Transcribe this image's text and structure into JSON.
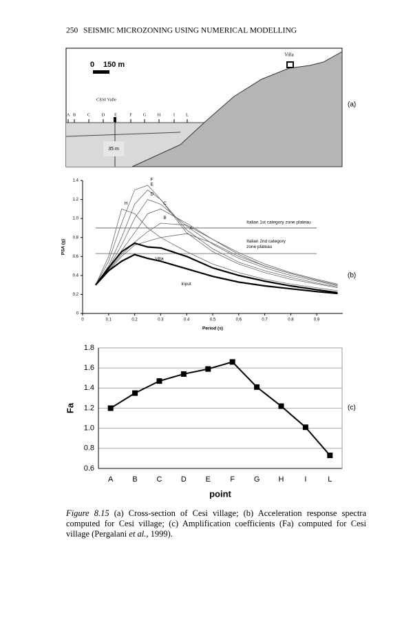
{
  "header": {
    "page_number": "250",
    "running_title": "SEISMIC MICROZONING USING NUMERICAL MODELLING"
  },
  "panel_a": {
    "label": "(a)",
    "scale_start": "0",
    "scale_end": "150 m",
    "villa": "Villa",
    "valley": "CESI Valle",
    "points": [
      "A",
      "B",
      "C",
      "D",
      "E",
      "F",
      "G",
      "H",
      "I",
      "L"
    ],
    "depth": "35 m"
  },
  "chart_data": [
    {
      "type": "line",
      "panel_label": "(b)",
      "x_label": "Period (s)",
      "y_label": "PSA (g)",
      "x": [
        0.05,
        0.1,
        0.15,
        0.2,
        0.25,
        0.3,
        0.4,
        0.5,
        0.6,
        0.7,
        0.8,
        0.9,
        0.98
      ],
      "series": [
        {
          "name": "H",
          "color": "#666666",
          "values": [
            0.3,
            0.6,
            1.1,
            1.05,
            0.9,
            0.8,
            0.65,
            0.52,
            0.43,
            0.36,
            0.31,
            0.27,
            0.24
          ]
        },
        {
          "name": "F",
          "color": "#666666",
          "values": [
            0.3,
            0.55,
            0.95,
            1.3,
            1.35,
            1.2,
            0.85,
            0.65,
            0.52,
            0.43,
            0.36,
            0.31,
            0.27
          ]
        },
        {
          "name": "E",
          "color": "#666666",
          "values": [
            0.3,
            0.5,
            0.8,
            1.15,
            1.3,
            1.2,
            0.88,
            0.68,
            0.54,
            0.45,
            0.38,
            0.32,
            0.28
          ]
        },
        {
          "name": "D",
          "color": "#666666",
          "values": [
            0.3,
            0.48,
            0.72,
            1.0,
            1.2,
            1.15,
            0.92,
            0.73,
            0.58,
            0.48,
            0.4,
            0.34,
            0.29
          ]
        },
        {
          "name": "C",
          "color": "#666666",
          "values": [
            0.3,
            0.47,
            0.66,
            0.85,
            1.05,
            1.1,
            0.95,
            0.78,
            0.62,
            0.5,
            0.42,
            0.35,
            0.3
          ]
        },
        {
          "name": "B",
          "color": "#666666",
          "values": [
            0.3,
            0.46,
            0.62,
            0.75,
            0.86,
            0.95,
            0.93,
            0.78,
            0.64,
            0.52,
            0.43,
            0.36,
            0.31
          ]
        },
        {
          "name": "A",
          "color": "#666666",
          "values": [
            0.3,
            0.45,
            0.6,
            0.72,
            0.76,
            0.8,
            0.84,
            0.74,
            0.6,
            0.5,
            0.42,
            0.35,
            0.3
          ]
        },
        {
          "name": "Villa",
          "color": "#000000",
          "values": [
            0.3,
            0.48,
            0.65,
            0.74,
            0.7,
            0.69,
            0.6,
            0.48,
            0.4,
            0.34,
            0.29,
            0.25,
            0.22
          ]
        },
        {
          "name": "Input",
          "color": "#000000",
          "values": [
            0.3,
            0.45,
            0.55,
            0.62,
            0.58,
            0.55,
            0.47,
            0.39,
            0.33,
            0.29,
            0.26,
            0.23,
            0.21
          ]
        }
      ],
      "reference_lines": [
        {
          "label_lines": [
            "Italian 1st category zone plateau"
          ],
          "value": 0.9
        },
        {
          "label_lines": [
            "Italian 2nd category",
            "zone plateau"
          ],
          "value": 0.63
        }
      ],
      "xlim": [
        0,
        1.0
      ],
      "xticks": [
        0,
        0.1,
        0.2,
        0.3,
        0.4,
        0.5,
        0.6,
        0.7,
        0.8,
        0.9
      ],
      "ylim": [
        0,
        1.4
      ],
      "yticks": [
        0,
        0.2,
        0.4,
        0.6,
        0.8,
        {
          "value": 1,
          "label": "1.0"
        },
        1.2,
        1.4
      ],
      "grid": false
    },
    {
      "type": "line",
      "panel_label": "(c)",
      "x_label": "point",
      "y_label": "Fa",
      "color": "#000000",
      "categories": [
        "A",
        "B",
        "C",
        "D",
        "E",
        "F",
        "G",
        "H",
        "I",
        "L"
      ],
      "values": [
        1.2,
        1.35,
        1.47,
        1.54,
        1.59,
        1.66,
        1.41,
        1.22,
        1.01,
        0.73
      ],
      "ylim": [
        0.6,
        1.8
      ],
      "yticks": [
        0.6,
        0.8,
        {
          "value": 1,
          "label": "1.0"
        },
        1.2,
        1.4,
        1.6,
        1.8
      ],
      "grid": true
    }
  ],
  "caption": {
    "figure": "Figure 8.15",
    "text": " (a) Cross-section of Cesi village; (b) Acceleration response spectra computed for Cesi village; (c) Amplification coefficients (Fa) computed for Cesi village (Pergalani ",
    "italic": "et al.,",
    "end": " 1999)."
  }
}
